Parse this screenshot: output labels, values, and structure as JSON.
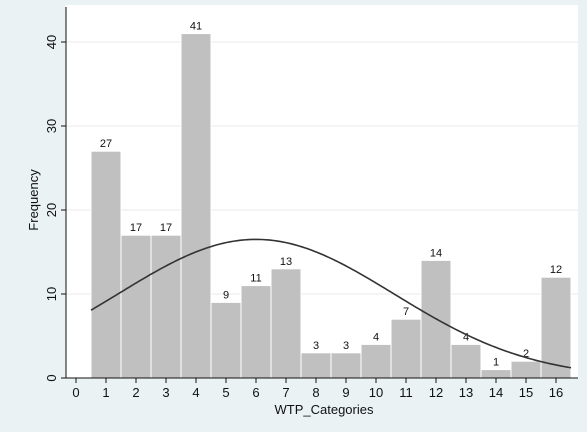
{
  "chart_data": {
    "type": "bar",
    "xlabel": "WTP_Categories",
    "ylabel": "Frequency",
    "xlim": [
      -0.5,
      16.5
    ],
    "ylim": [
      0,
      42
    ],
    "x_ticks": [
      0,
      1,
      2,
      3,
      4,
      5,
      6,
      7,
      8,
      9,
      10,
      11,
      12,
      13,
      14,
      15,
      16
    ],
    "y_ticks": [
      0,
      10,
      20,
      30,
      40
    ],
    "grid": true,
    "categories": [
      1,
      2,
      3,
      4,
      5,
      6,
      7,
      8,
      9,
      10,
      11,
      12,
      13,
      14,
      15,
      16
    ],
    "values": [
      27,
      17,
      17,
      41,
      9,
      11,
      13,
      3,
      3,
      4,
      7,
      14,
      4,
      1,
      2,
      12
    ],
    "normal_curve": {
      "mean": 6.0,
      "sd": 4.6,
      "peak_frequency": 16.5
    },
    "colors": {
      "bar": "#c0c0c0",
      "curve": "#333333",
      "grid": "#e8e8e8",
      "plot_bg": "#ffffff",
      "outer_bg": "#eaf2f3"
    }
  }
}
